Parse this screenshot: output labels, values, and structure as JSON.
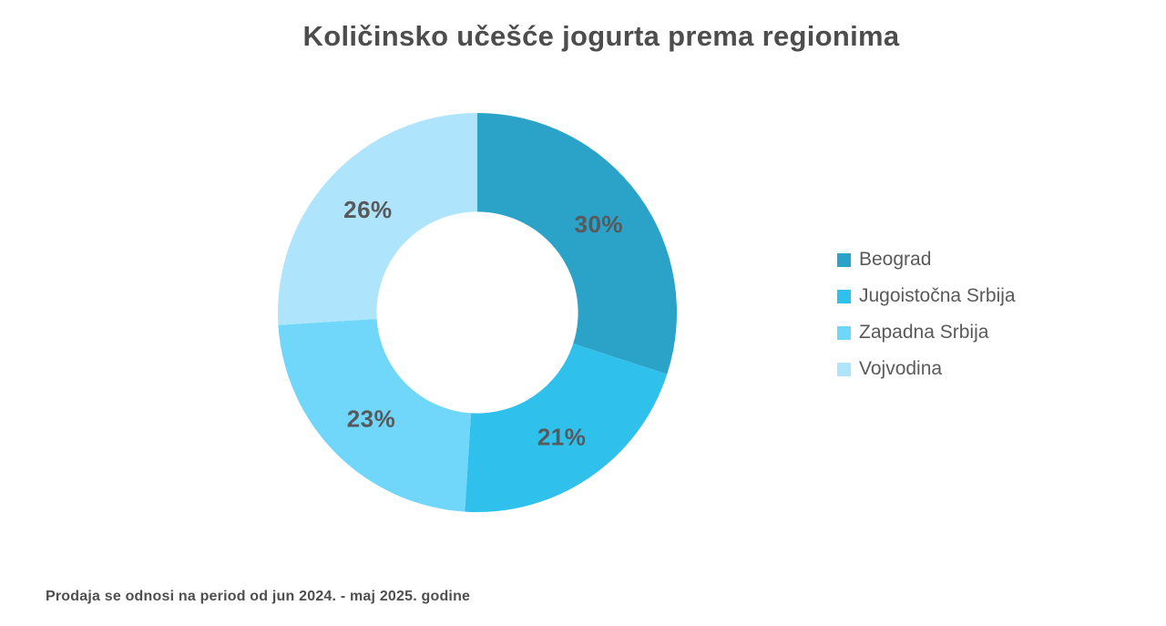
{
  "chart_data": {
    "type": "pie",
    "variant": "donut",
    "title": "Količinsko učešće jogurta prema regionima",
    "labels": [
      "Beograd",
      "Jugoistočna Srbija",
      "Zapadna Srbija",
      "Vojvodina"
    ],
    "values": [
      30,
      21,
      23,
      26
    ],
    "unit": "%",
    "data_labels": [
      "30%",
      "21%",
      "23%",
      "26%"
    ],
    "colors": [
      "#2ba3c9",
      "#2fc1ec",
      "#70d6fa",
      "#aee4fc"
    ],
    "data_label_color": "#58595b",
    "start_angle_deg": 0,
    "direction": "clockwise",
    "inner_radius_ratio": 0.505,
    "legend_position": "right",
    "grid": false
  },
  "footnote": "Prodaja se odnosi na period od jun 2024. - maj 2025. godine"
}
